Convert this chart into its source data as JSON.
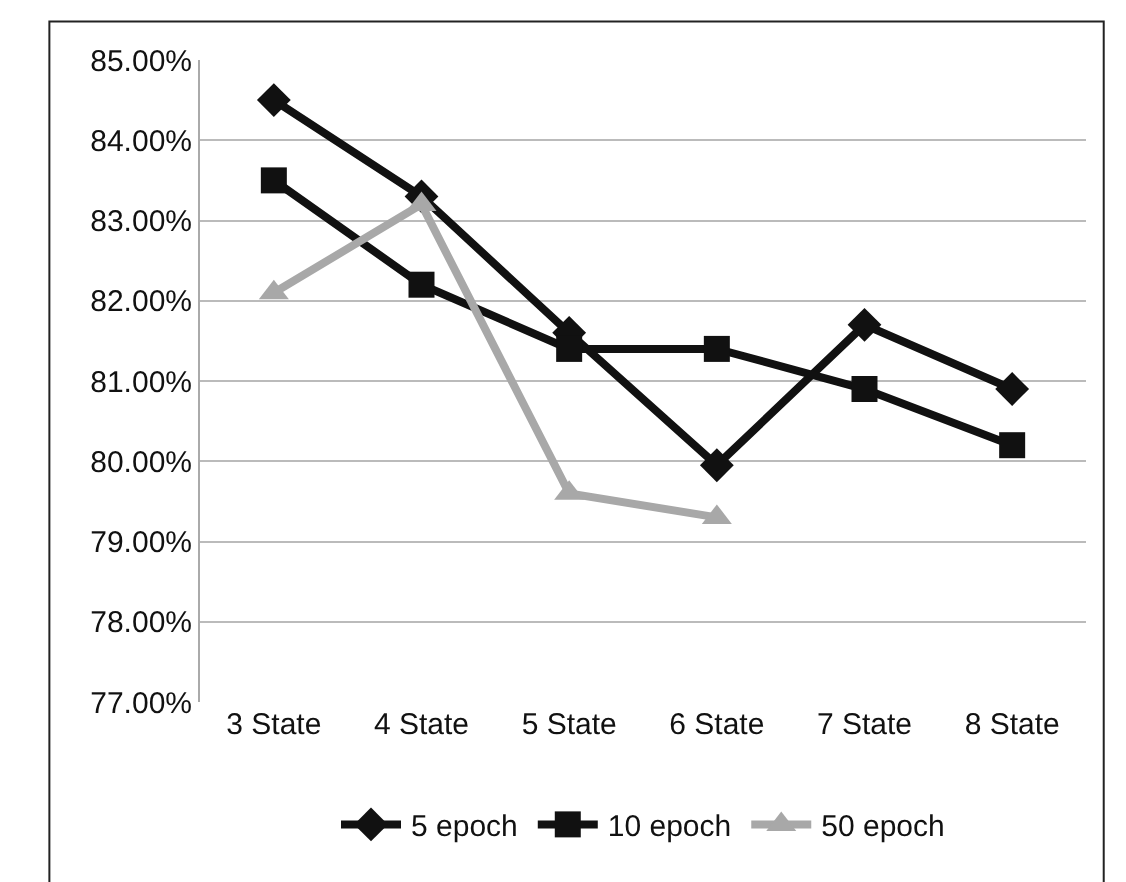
{
  "chart_data": {
    "type": "line",
    "categories": [
      "3 State",
      "4 State",
      "5 State",
      "6 State",
      "7 State",
      "8 State"
    ],
    "series": [
      {
        "name": "5 epoch",
        "color": "#111111",
        "marker": "diamond",
        "values": [
          84.5,
          83.3,
          81.6,
          79.95,
          81.7,
          80.9
        ]
      },
      {
        "name": "10 epoch",
        "color": "#111111",
        "marker": "square",
        "values": [
          83.5,
          82.2,
          81.4,
          81.4,
          80.9,
          80.2
        ]
      },
      {
        "name": "50 epoch",
        "color": "#a8a8a8",
        "marker": "triangle",
        "values": [
          82.1,
          83.2,
          79.6,
          79.3,
          null,
          null
        ]
      }
    ],
    "ylim": [
      77,
      85
    ],
    "yticks": [
      {
        "value": 77,
        "label": "77.00%"
      },
      {
        "value": 78,
        "label": "78.00%"
      },
      {
        "value": 79,
        "label": "79.00%"
      },
      {
        "value": 80,
        "label": "80.00%"
      },
      {
        "value": 81,
        "label": "81.00%"
      },
      {
        "value": 82,
        "label": "82.00%"
      },
      {
        "value": 83,
        "label": "83.00%"
      },
      {
        "value": 84,
        "label": "84.00%"
      },
      {
        "value": 85,
        "label": "85.00%"
      }
    ],
    "grid": "y",
    "legend": "bottom",
    "line_style": "solid"
  }
}
